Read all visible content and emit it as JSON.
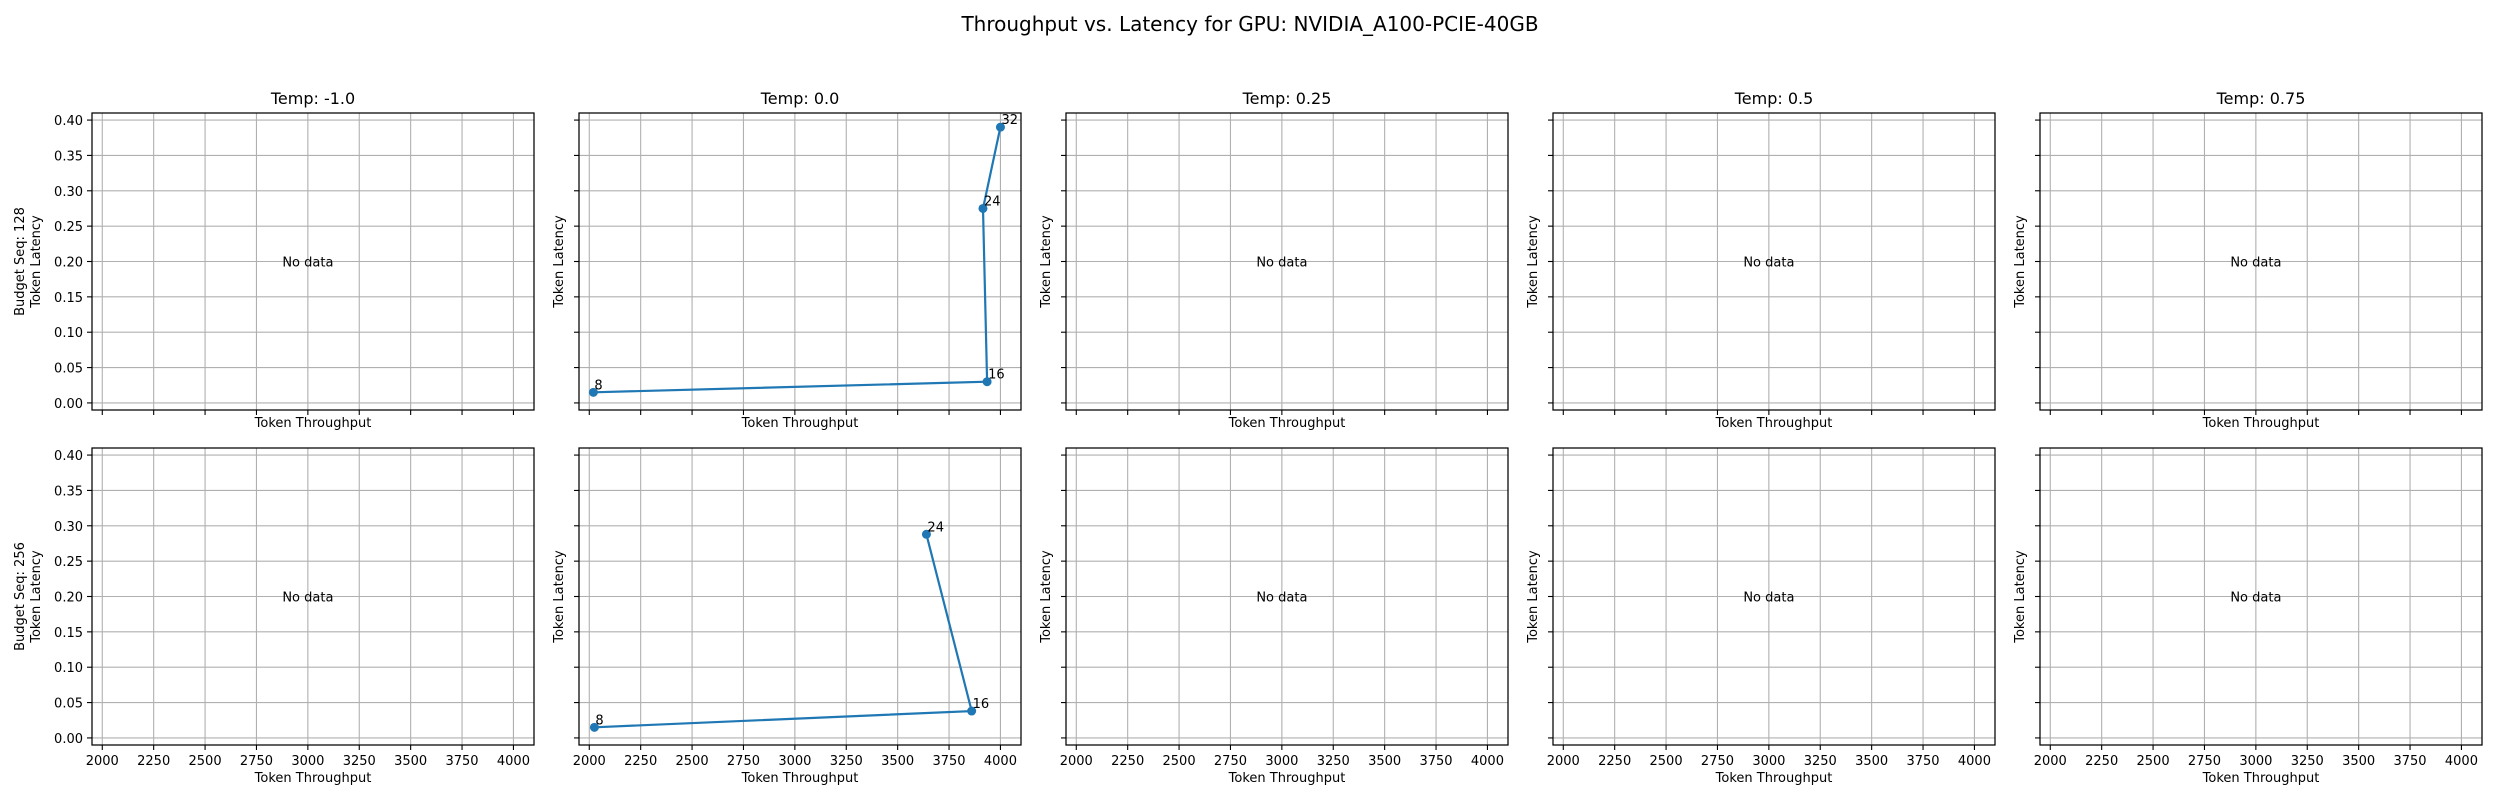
{
  "chart_data": {
    "type": "line",
    "title": "Throughput vs. Latency for GPU: NVIDIA_A100-PCIE-40GB",
    "xlim": [
      1950,
      4100
    ],
    "ylim": [
      -0.01,
      0.41
    ],
    "x_ticks": [
      2000,
      2250,
      2500,
      2750,
      3000,
      3250,
      3500,
      3750,
      4000
    ],
    "y_ticks": [
      0.0,
      0.05,
      0.1,
      0.15,
      0.2,
      0.25,
      0.3,
      0.35,
      0.4
    ],
    "y_tick_labels": [
      "0.00",
      "0.05",
      "0.10",
      "0.15",
      "0.20",
      "0.25",
      "0.30",
      "0.35",
      "0.40"
    ],
    "grid": true,
    "shared_axes": true,
    "xlabel": "Token Throughput",
    "ylabel": "Token Latency",
    "no_data_text": "No data",
    "columns": [
      "Temp: -1.0",
      "Temp: 0.0",
      "Temp: 0.25",
      "Temp: 0.5",
      "Temp: 0.75"
    ],
    "rows": [
      "Budget Seq: 128",
      "Budget Seq: 256"
    ],
    "panels": [
      {
        "row": 0,
        "col": 0,
        "points": []
      },
      {
        "row": 0,
        "col": 1,
        "points": [
          {
            "label": "8",
            "x": 2020,
            "y": 0.015
          },
          {
            "label": "16",
            "x": 3935,
            "y": 0.03
          },
          {
            "label": "24",
            "x": 3915,
            "y": 0.275
          },
          {
            "label": "32",
            "x": 4000,
            "y": 0.39
          }
        ]
      },
      {
        "row": 0,
        "col": 2,
        "points": []
      },
      {
        "row": 0,
        "col": 3,
        "points": []
      },
      {
        "row": 0,
        "col": 4,
        "points": []
      },
      {
        "row": 1,
        "col": 0,
        "points": []
      },
      {
        "row": 1,
        "col": 1,
        "points": [
          {
            "label": "8",
            "x": 2025,
            "y": 0.015
          },
          {
            "label": "16",
            "x": 3860,
            "y": 0.038
          },
          {
            "label": "24",
            "x": 3640,
            "y": 0.288
          }
        ]
      },
      {
        "row": 1,
        "col": 2,
        "points": []
      },
      {
        "row": 1,
        "col": 3,
        "points": []
      },
      {
        "row": 1,
        "col": 4,
        "points": []
      }
    ],
    "colors": {
      "series": "#1f77b4",
      "grid": "#b0b0b0",
      "frame": "#000000"
    }
  }
}
